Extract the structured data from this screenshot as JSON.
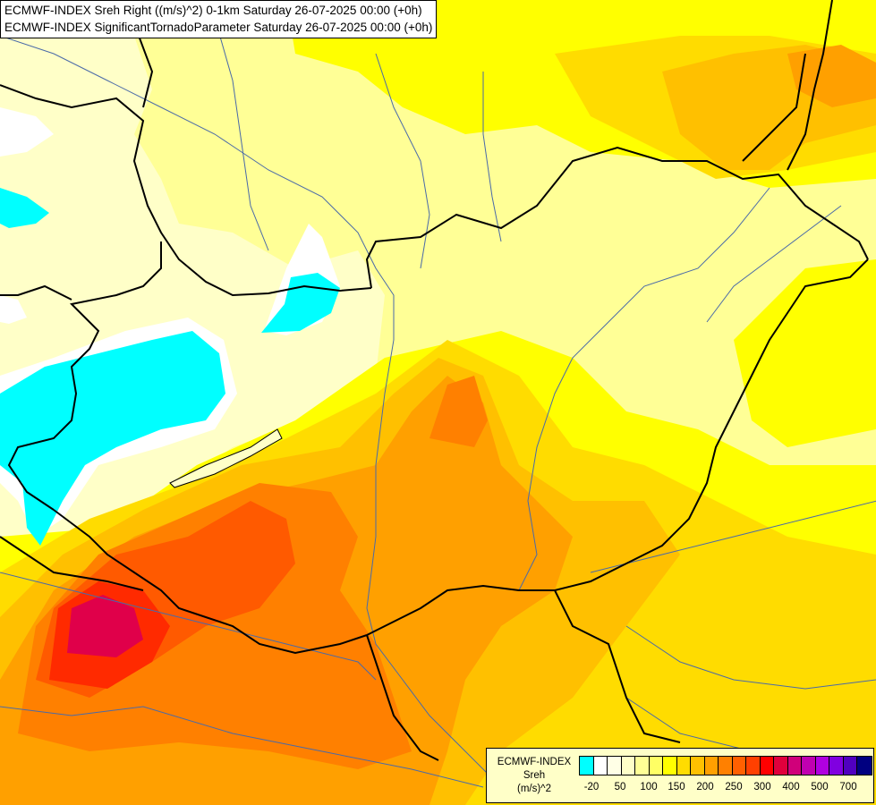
{
  "header": {
    "line1": "ECMWF-INDEX Sreh Right ((m/s)^2) 0-1km Saturday 26-07-2025 00:00 (+0h)",
    "line2": "ECMWF-INDEX SignificantTornadoParameter Saturday 26-07-2025 00:00 (+0h)"
  },
  "legend": {
    "title_line1": "ECMWF-INDEX",
    "title_line2": "Sreh",
    "title_line3": "(m/s)^2",
    "colors": [
      "#00ffff",
      "#ffffff",
      "#ffffe6",
      "#ffffc8",
      "#ffff96",
      "#ffff64",
      "#ffff00",
      "#ffdc00",
      "#ffc000",
      "#ffa000",
      "#ff8000",
      "#ff6000",
      "#ff4000",
      "#ff0000",
      "#e0003c",
      "#d0007a",
      "#c000b0",
      "#b000e0",
      "#8000e0",
      "#5000c0",
      "#000080"
    ],
    "ticks": [
      "-20",
      "50",
      "100",
      "150",
      "200",
      "250",
      "300",
      "400",
      "500",
      "700"
    ]
  },
  "map": {
    "fill_colors": {
      "cyan": "#00ffff",
      "white": "#ffffff",
      "pale": "#ffffc8",
      "light_yellow": "#ffff96",
      "yellow": "#ffff00",
      "gold": "#ffdc00",
      "orange_light": "#ffc000",
      "orange": "#ffa000",
      "orange_dark": "#ff8000",
      "red_orange": "#ff5a00",
      "red": "#ff2a00",
      "crimson": "#e0004a"
    },
    "border_color": "#000000",
    "river_color": "#4a6aa8"
  }
}
